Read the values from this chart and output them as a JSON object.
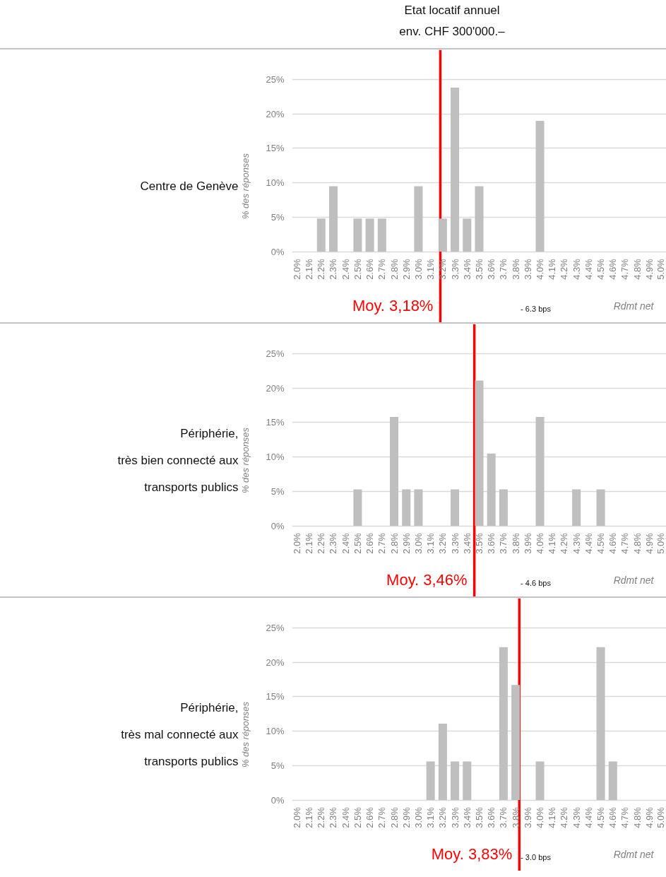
{
  "chart_data": [
    {
      "type": "bar",
      "title": "Centre de Genève",
      "subtitle": "Etat locatif annuel\nenv. CHF 300'000.–",
      "ylabel": "% des réponses",
      "xlabel": "Rdmt net",
      "annotations": [
        "- 6.3 bps"
      ],
      "color": "#bfbfbf",
      "grid": "y",
      "x": [
        2.0,
        2.1,
        2.2,
        2.3,
        2.4,
        2.5,
        2.6,
        2.7,
        2.8,
        2.9,
        3.0,
        3.1,
        3.2,
        3.3,
        3.4,
        3.5,
        3.6,
        3.7,
        3.8,
        3.9,
        4.0,
        4.1,
        4.2,
        4.3,
        4.4,
        4.5,
        4.6,
        4.7,
        4.8,
        4.9,
        5.0
      ],
      "values": [
        0,
        0,
        4.8,
        9.5,
        0,
        4.8,
        4.8,
        4.8,
        0,
        0,
        9.5,
        0,
        4.8,
        23.8,
        4.8,
        9.5,
        0,
        0,
        0,
        0,
        19.0,
        0,
        0,
        0,
        0,
        0,
        0,
        0,
        0,
        0,
        0
      ],
      "xlim": [
        1.96,
        5.04
      ],
      "ylim": [
        -10.3,
        29.3
      ],
      "xticks": [
        {
          "value": 2.0,
          "label": "2.0%"
        },
        {
          "value": 2.1,
          "label": "2.1%"
        },
        {
          "value": 2.2,
          "label": "2.2%"
        },
        {
          "value": 2.3,
          "label": "2.3%"
        },
        {
          "value": 2.4,
          "label": "2.4%"
        },
        {
          "value": 2.5,
          "label": "2.5%"
        },
        {
          "value": 2.6,
          "label": "2.6%"
        },
        {
          "value": 2.7,
          "label": "2.7%"
        },
        {
          "value": 2.8,
          "label": "2.8%"
        },
        {
          "value": 2.9,
          "label": "2.9%"
        },
        {
          "value": 3.0,
          "label": "3.0%"
        },
        {
          "value": 3.1,
          "label": "3.1%"
        },
        {
          "value": 3.2,
          "label": "3.2%"
        },
        {
          "value": 3.3,
          "label": "3.3%"
        },
        {
          "value": 3.4,
          "label": "3.4%"
        },
        {
          "value": 3.5,
          "label": "3.5%"
        },
        {
          "value": 3.6,
          "label": "3.6%"
        },
        {
          "value": 3.7,
          "label": "3.7%"
        },
        {
          "value": 3.8,
          "label": "3.8%"
        },
        {
          "value": 3.9,
          "label": "3.9%"
        },
        {
          "value": 4.0,
          "label": "4.0%"
        },
        {
          "value": 4.1,
          "label": "4.1%"
        },
        {
          "value": 4.2,
          "label": "4.2%"
        },
        {
          "value": 4.3,
          "label": "4.3%"
        },
        {
          "value": 4.4,
          "label": "4.4%"
        },
        {
          "value": 4.5,
          "label": "4.5%"
        },
        {
          "value": 4.6,
          "label": "4.6%"
        },
        {
          "value": 4.7,
          "label": "4.7%"
        },
        {
          "value": 4.8,
          "label": "4.8%"
        },
        {
          "value": 4.9,
          "label": "4.9%"
        },
        {
          "value": 5.0,
          "label": "5.0%"
        }
      ],
      "yticks": [
        {
          "value": 0,
          "label": "0%"
        },
        {
          "value": 5,
          "label": "5%"
        },
        {
          "value": 10,
          "label": "10%"
        },
        {
          "value": 15,
          "label": "15%"
        },
        {
          "value": 20,
          "label": "20%"
        },
        {
          "value": 25,
          "label": "25%"
        }
      ],
      "ref_lines": [
        {
          "axis": "x",
          "value": 3.18,
          "label": "Moy. 3,18%",
          "color": "#ff0000"
        }
      ]
    },
    {
      "type": "bar",
      "title": "Périphérie,\ntrès bien connecté aux\ntransports publics",
      "ylabel": "% des réponses",
      "xlabel": "Rdmt net",
      "annotations": [
        "- 4.6 bps"
      ],
      "color": "#bfbfbf",
      "grid": "y",
      "x": [
        2.0,
        2.1,
        2.2,
        2.3,
        2.4,
        2.5,
        2.6,
        2.7,
        2.8,
        2.9,
        3.0,
        3.1,
        3.2,
        3.3,
        3.4,
        3.5,
        3.6,
        3.7,
        3.8,
        3.9,
        4.0,
        4.1,
        4.2,
        4.3,
        4.4,
        4.5,
        4.6,
        4.7,
        4.8,
        4.9,
        5.0
      ],
      "values": [
        0,
        0,
        0,
        0,
        0,
        5.3,
        0,
        0,
        15.8,
        5.3,
        5.3,
        0,
        0,
        5.3,
        0,
        21.1,
        10.5,
        5.3,
        0,
        0,
        15.8,
        0,
        0,
        5.3,
        0,
        5.3,
        0,
        0,
        0,
        0,
        0
      ],
      "xlim": [
        1.96,
        5.04
      ],
      "ylim": [
        -10.3,
        29.3
      ],
      "xticks": [
        {
          "value": 2.0,
          "label": "2.0%"
        },
        {
          "value": 2.1,
          "label": "2.1%"
        },
        {
          "value": 2.2,
          "label": "2.2%"
        },
        {
          "value": 2.3,
          "label": "2.3%"
        },
        {
          "value": 2.4,
          "label": "2.4%"
        },
        {
          "value": 2.5,
          "label": "2.5%"
        },
        {
          "value": 2.6,
          "label": "2.6%"
        },
        {
          "value": 2.7,
          "label": "2.7%"
        },
        {
          "value": 2.8,
          "label": "2.8%"
        },
        {
          "value": 2.9,
          "label": "2.9%"
        },
        {
          "value": 3.0,
          "label": "3.0%"
        },
        {
          "value": 3.1,
          "label": "3.1%"
        },
        {
          "value": 3.2,
          "label": "3.2%"
        },
        {
          "value": 3.3,
          "label": "3.3%"
        },
        {
          "value": 3.4,
          "label": "3.4%"
        },
        {
          "value": 3.5,
          "label": "3.5%"
        },
        {
          "value": 3.6,
          "label": "3.6%"
        },
        {
          "value": 3.7,
          "label": "3.7%"
        },
        {
          "value": 3.8,
          "label": "3.8%"
        },
        {
          "value": 3.9,
          "label": "3.9%"
        },
        {
          "value": 4.0,
          "label": "4.0%"
        },
        {
          "value": 4.1,
          "label": "4.1%"
        },
        {
          "value": 4.2,
          "label": "4.2%"
        },
        {
          "value": 4.3,
          "label": "4.3%"
        },
        {
          "value": 4.4,
          "label": "4.4%"
        },
        {
          "value": 4.5,
          "label": "4.5%"
        },
        {
          "value": 4.6,
          "label": "4.6%"
        },
        {
          "value": 4.7,
          "label": "4.7%"
        },
        {
          "value": 4.8,
          "label": "4.8%"
        },
        {
          "value": 4.9,
          "label": "4.9%"
        },
        {
          "value": 5.0,
          "label": "5.0%"
        }
      ],
      "yticks": [
        {
          "value": 0,
          "label": "0%"
        },
        {
          "value": 5,
          "label": "5%"
        },
        {
          "value": 10,
          "label": "10%"
        },
        {
          "value": 15,
          "label": "15%"
        },
        {
          "value": 20,
          "label": "20%"
        },
        {
          "value": 25,
          "label": "25%"
        }
      ],
      "ref_lines": [
        {
          "axis": "x",
          "value": 3.46,
          "label": "Moy. 3,46%",
          "color": "#ff0000"
        }
      ]
    },
    {
      "type": "bar",
      "title": "Périphérie,\ntrès mal connecté aux\ntransports publics",
      "ylabel": "% des réponses",
      "xlabel": "Rdmt net",
      "annotations": [
        "- 3.0 bps"
      ],
      "color": "#bfbfbf",
      "grid": "y",
      "x": [
        2.0,
        2.1,
        2.2,
        2.3,
        2.4,
        2.5,
        2.6,
        2.7,
        2.8,
        2.9,
        3.0,
        3.1,
        3.2,
        3.3,
        3.4,
        3.5,
        3.6,
        3.7,
        3.8,
        3.9,
        4.0,
        4.1,
        4.2,
        4.3,
        4.4,
        4.5,
        4.6,
        4.7,
        4.8,
        4.9,
        5.0
      ],
      "values": [
        0,
        0,
        0,
        0,
        0,
        0,
        0,
        0,
        0,
        0,
        0,
        5.6,
        11.1,
        5.6,
        5.6,
        0,
        0,
        22.2,
        16.7,
        0,
        5.6,
        0,
        0,
        0,
        0,
        22.2,
        5.6,
        0,
        0,
        0,
        0
      ],
      "xlim": [
        1.96,
        5.04
      ],
      "ylim": [
        -10.3,
        29.3
      ],
      "xticks": [
        {
          "value": 2.0,
          "label": "2.0%"
        },
        {
          "value": 2.1,
          "label": "2.1%"
        },
        {
          "value": 2.2,
          "label": "2.2%"
        },
        {
          "value": 2.3,
          "label": "2.3%"
        },
        {
          "value": 2.4,
          "label": "2.4%"
        },
        {
          "value": 2.5,
          "label": "2.5%"
        },
        {
          "value": 2.6,
          "label": "2.6%"
        },
        {
          "value": 2.7,
          "label": "2.7%"
        },
        {
          "value": 2.8,
          "label": "2.8%"
        },
        {
          "value": 2.9,
          "label": "2.9%"
        },
        {
          "value": 3.0,
          "label": "3.0%"
        },
        {
          "value": 3.1,
          "label": "3.1%"
        },
        {
          "value": 3.2,
          "label": "3.2%"
        },
        {
          "value": 3.3,
          "label": "3.3%"
        },
        {
          "value": 3.4,
          "label": "3.4%"
        },
        {
          "value": 3.5,
          "label": "3.5%"
        },
        {
          "value": 3.6,
          "label": "3.6%"
        },
        {
          "value": 3.7,
          "label": "3.7%"
        },
        {
          "value": 3.8,
          "label": "3.8%"
        },
        {
          "value": 3.9,
          "label": "3.9%"
        },
        {
          "value": 4.0,
          "label": "4.0%"
        },
        {
          "value": 4.1,
          "label": "4.1%"
        },
        {
          "value": 4.2,
          "label": "4.2%"
        },
        {
          "value": 4.3,
          "label": "4.3%"
        },
        {
          "value": 4.4,
          "label": "4.4%"
        },
        {
          "value": 4.5,
          "label": "4.5%"
        },
        {
          "value": 4.6,
          "label": "4.6%"
        },
        {
          "value": 4.7,
          "label": "4.7%"
        },
        {
          "value": 4.8,
          "label": "4.8%"
        },
        {
          "value": 4.9,
          "label": "4.9%"
        },
        {
          "value": 5.0,
          "label": "5.0%"
        }
      ],
      "yticks": [
        {
          "value": 0,
          "label": "0%"
        },
        {
          "value": 5,
          "label": "5%"
        },
        {
          "value": 10,
          "label": "10%"
        },
        {
          "value": 15,
          "label": "15%"
        },
        {
          "value": 20,
          "label": "20%"
        },
        {
          "value": 25,
          "label": "25%"
        }
      ],
      "ref_lines": [
        {
          "axis": "x",
          "value": 3.83,
          "label": "Moy. 3,83%",
          "color": "#ff0000"
        }
      ]
    }
  ]
}
